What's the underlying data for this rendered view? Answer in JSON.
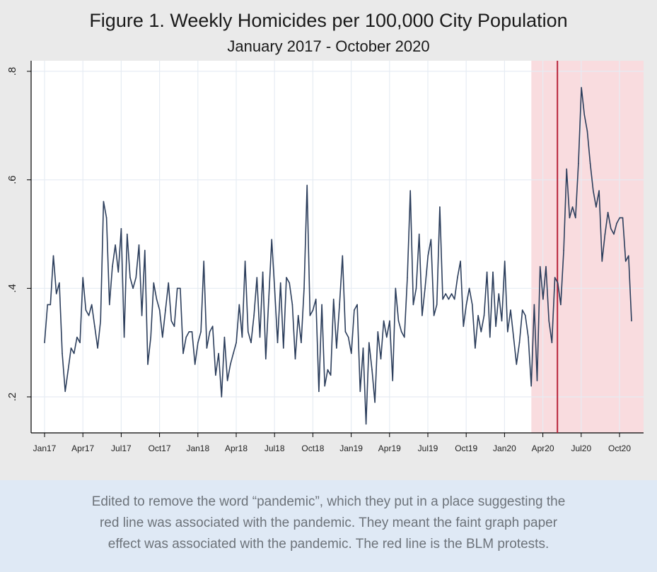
{
  "chart_data": {
    "type": "line",
    "title": "Figure 1. Weekly Homicides per 100,000 City Population",
    "subtitle": "January 2017 - October 2020",
    "xlabel": "",
    "ylabel": "",
    "ylim": [
      0.13,
      0.82
    ],
    "y_ticks": [
      ".2",
      ".4",
      ".6",
      ".8"
    ],
    "x_tick_labels": [
      "Jan17",
      "Apr17",
      "Jul17",
      "Oct17",
      "Jan18",
      "Apr18",
      "Jul18",
      "Oct18",
      "Jan19",
      "Apr19",
      "Jul19",
      "Oct19",
      "Jan20",
      "Apr20",
      "Jul20",
      "Oct20"
    ],
    "grid": true,
    "legend": "none",
    "shaded_period": {
      "from": "Mar20",
      "to": "end"
    },
    "vertical_line": "late May 2020",
    "colors": {
      "line": "#2c3e5c",
      "shade": "#f9dcdf",
      "marker_line": "#b8233a",
      "grid": "#e6ecf3"
    },
    "series": [
      {
        "values": [
          0.3,
          0.37,
          0.37,
          0.46,
          0.39,
          0.41,
          0.28,
          0.21,
          0.25,
          0.29,
          0.28,
          0.31,
          0.3,
          0.42,
          0.36,
          0.35,
          0.37,
          0.33,
          0.29,
          0.34,
          0.56,
          0.53,
          0.37,
          0.44,
          0.48,
          0.43,
          0.51,
          0.31,
          0.5,
          0.42,
          0.4,
          0.42,
          0.48,
          0.35,
          0.47,
          0.26,
          0.31,
          0.41,
          0.38,
          0.36,
          0.31,
          0.36,
          0.41,
          0.34,
          0.33,
          0.4,
          0.4,
          0.28,
          0.31,
          0.32,
          0.32,
          0.26,
          0.3,
          0.32,
          0.45,
          0.29,
          0.32,
          0.33,
          0.24,
          0.28,
          0.2,
          0.31,
          0.23,
          0.26,
          0.28,
          0.3,
          0.37,
          0.31,
          0.45,
          0.32,
          0.3,
          0.35,
          0.42,
          0.31,
          0.43,
          0.27,
          0.38,
          0.49,
          0.4,
          0.3,
          0.41,
          0.29,
          0.42,
          0.41,
          0.37,
          0.27,
          0.35,
          0.3,
          0.4,
          0.59,
          0.35,
          0.36,
          0.38,
          0.21,
          0.37,
          0.22,
          0.25,
          0.24,
          0.38,
          0.29,
          0.37,
          0.46,
          0.32,
          0.31,
          0.28,
          0.36,
          0.37,
          0.21,
          0.29,
          0.15,
          0.3,
          0.25,
          0.19,
          0.32,
          0.27,
          0.34,
          0.31,
          0.34,
          0.23,
          0.4,
          0.34,
          0.32,
          0.31,
          0.42,
          0.58,
          0.37,
          0.4,
          0.5,
          0.35,
          0.4,
          0.46,
          0.49,
          0.35,
          0.37,
          0.55,
          0.38,
          0.39,
          0.38,
          0.39,
          0.38,
          0.42,
          0.45,
          0.33,
          0.37,
          0.4,
          0.37,
          0.29,
          0.35,
          0.32,
          0.35,
          0.43,
          0.31,
          0.43,
          0.33,
          0.39,
          0.34,
          0.45,
          0.32,
          0.36,
          0.31,
          0.26,
          0.3,
          0.36,
          0.35,
          0.31,
          0.22,
          0.37,
          0.23,
          0.44,
          0.38,
          0.44,
          0.34,
          0.3,
          0.42,
          0.41,
          0.37,
          0.47,
          0.62,
          0.53,
          0.55,
          0.53,
          0.63,
          0.77,
          0.72,
          0.69,
          0.63,
          0.58,
          0.55,
          0.58,
          0.45,
          0.5,
          0.54,
          0.51,
          0.5,
          0.52,
          0.53,
          0.53,
          0.45,
          0.46,
          0.34
        ]
      }
    ]
  },
  "caption": {
    "lines": [
      "Edited to remove the word “pandemic”, which they put in a place suggesting the",
      "red line was associated with the pandemic. They meant the faint graph paper",
      "effect was associated with the pandemic. The red line is the BLM protests."
    ]
  }
}
